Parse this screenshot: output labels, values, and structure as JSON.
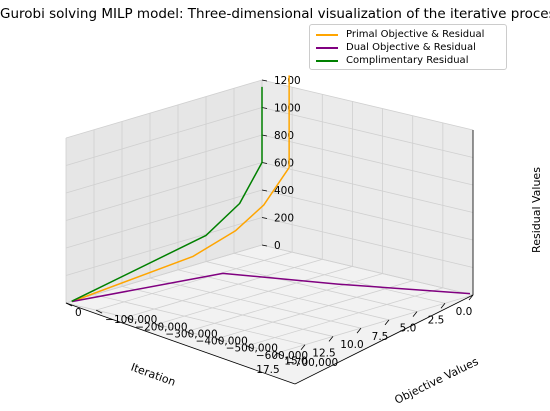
{
  "chart_data": {
    "type": "line",
    "title": "Gurobi solving MILP model: Three-dimensional visualization of the iterative process",
    "xlabel": "Iteration",
    "ylabel": "Objective Values",
    "zlabel": "Residual Values",
    "xlim": [
      0,
      17.5
    ],
    "ylim": [
      -700000,
      0
    ],
    "zlim": [
      0,
      1200
    ],
    "x_ticks": [
      "0.0",
      "2.5",
      "5.0",
      "7.5",
      "10.0",
      "12.5",
      "15.0",
      "17.5"
    ],
    "y_ticks": [
      "0",
      "−100,000",
      "−200,000",
      "−300,000",
      "−400,000",
      "−500,000",
      "−600,000",
      "−700,000"
    ],
    "z_ticks": [
      "0",
      "200",
      "400",
      "600",
      "800",
      "1000",
      "1200"
    ],
    "legend_position": "top-right",
    "grid": true,
    "series": [
      {
        "name": "Primal Objective & Residual",
        "color": "#ffa500",
        "points": [
          [
            0,
            -90000,
            1280
          ],
          [
            0,
            -90000,
            610
          ],
          [
            2,
            -80000,
            380
          ],
          [
            4,
            -60000,
            230
          ],
          [
            7,
            -30000,
            100
          ],
          [
            17,
            -2000,
            0
          ]
        ]
      },
      {
        "name": "Dual Objective & Residual",
        "color": "#800080",
        "points": [
          [
            0,
            -690000,
            5
          ],
          [
            4,
            -400000,
            20
          ],
          [
            7,
            -130000,
            30
          ],
          [
            17,
            -2000,
            0
          ]
        ]
      },
      {
        "name": "Complimentary Residual",
        "color": "#008000",
        "points": [
          [
            0,
            0,
            1150
          ],
          [
            0,
            0,
            600
          ],
          [
            2,
            0,
            350
          ],
          [
            5,
            0,
            190
          ],
          [
            17,
            0,
            0
          ]
        ]
      }
    ]
  }
}
